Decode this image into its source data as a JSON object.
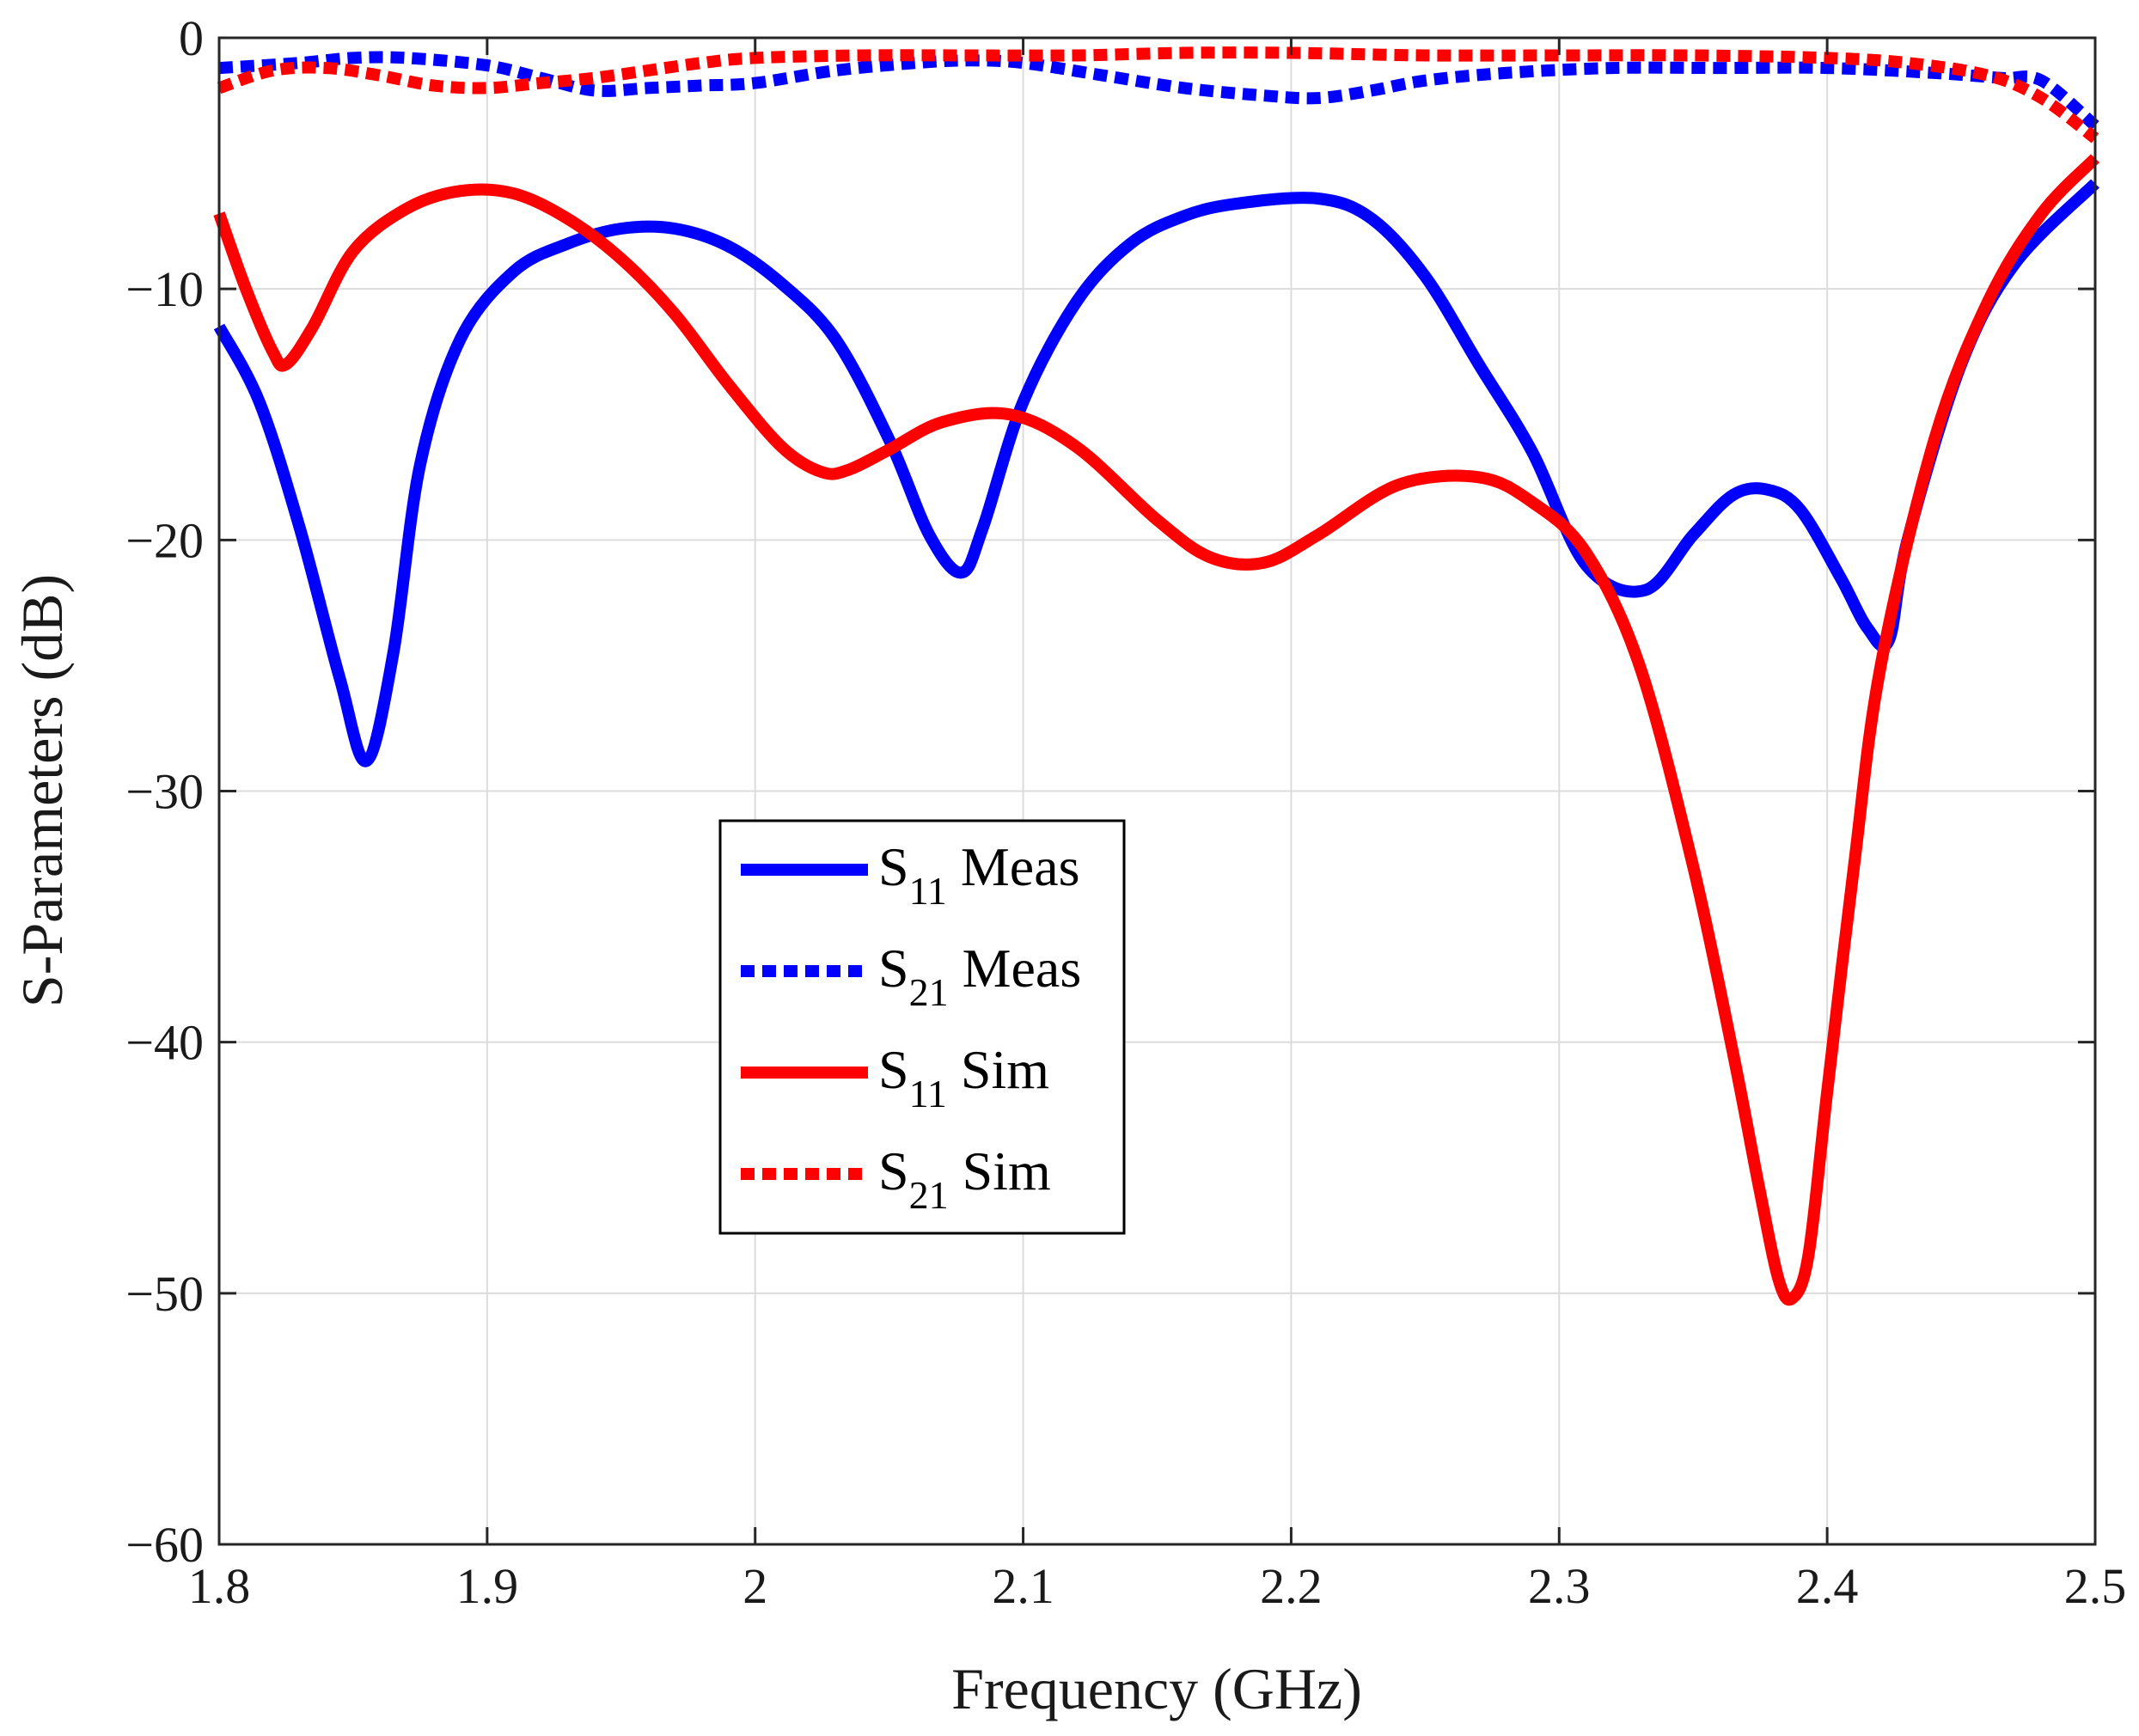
{
  "chart_data": {
    "type": "line",
    "title": "",
    "xlabel": "Frequency (GHz)",
    "ylabel": "S-Parameters (dB)",
    "xlim": [
      1.8,
      2.5
    ],
    "ylim": [
      -60,
      0
    ],
    "xticks": [
      1.8,
      1.9,
      2.0,
      2.1,
      2.2,
      2.3,
      2.4,
      2.5
    ],
    "xtick_labels": [
      "1.8",
      "1.9",
      "2",
      "2.1",
      "2.2",
      "2.3",
      "2.4",
      "2.5"
    ],
    "yticks": [
      0,
      -10,
      -20,
      -30,
      -40,
      -50,
      -60
    ],
    "ytick_labels": [
      "0",
      "−10",
      "−20",
      "−30",
      "−40",
      "−50",
      "−60"
    ],
    "grid": true,
    "legend_position": "center-left",
    "series": [
      {
        "name": "S11 Meas",
        "label_main": "S",
        "label_sub": "11",
        "label_rest": "Meas",
        "color": "#0000FF",
        "style": "solid",
        "x": [
          1.8,
          1.815,
          1.83,
          1.845,
          1.855,
          1.865,
          1.875,
          1.89,
          1.91,
          1.93,
          1.95,
          1.97,
          1.99,
          2.01,
          2.03,
          2.05,
          2.065,
          2.077,
          2.085,
          2.1,
          2.12,
          2.14,
          2.16,
          2.18,
          2.21,
          2.23,
          2.25,
          2.27,
          2.29,
          2.31,
          2.332,
          2.35,
          2.365,
          2.378,
          2.39,
          2.405,
          2.415,
          2.423,
          2.43,
          2.45,
          2.47,
          2.5
        ],
        "values": [
          -11.5,
          -14.5,
          -19.5,
          -25.5,
          -28.8,
          -24.5,
          -17.0,
          -12.0,
          -9.3,
          -8.2,
          -7.6,
          -7.6,
          -8.3,
          -9.8,
          -12.0,
          -16.0,
          -19.8,
          -21.3,
          -19.5,
          -14.5,
          -10.5,
          -8.2,
          -7.1,
          -6.6,
          -6.4,
          -7.2,
          -9.5,
          -13.0,
          -16.5,
          -21.0,
          -22.0,
          -19.8,
          -18.2,
          -18.0,
          -18.8,
          -21.5,
          -23.5,
          -24.0,
          -20.0,
          -13.0,
          -9.0,
          -5.8
        ]
      },
      {
        "name": "S21 Meas",
        "label_main": "S",
        "label_sub": "21",
        "label_rest": "Meas",
        "color": "#0000FF",
        "style": "dotted",
        "x": [
          1.8,
          1.83,
          1.85,
          1.87,
          1.9,
          1.92,
          1.94,
          1.96,
          1.98,
          2.0,
          2.03,
          2.06,
          2.08,
          2.1,
          2.13,
          2.16,
          2.19,
          2.21,
          2.23,
          2.25,
          2.28,
          2.32,
          2.36,
          2.4,
          2.44,
          2.465,
          2.48,
          2.5
        ],
        "values": [
          -1.2,
          -1.0,
          -0.8,
          -0.8,
          -1.1,
          -1.6,
          -2.1,
          -2.0,
          -1.9,
          -1.8,
          -1.3,
          -1.0,
          -0.9,
          -1.0,
          -1.5,
          -2.0,
          -2.3,
          -2.4,
          -2.1,
          -1.7,
          -1.4,
          -1.2,
          -1.2,
          -1.2,
          -1.4,
          -1.6,
          -1.7,
          -3.5
        ]
      },
      {
        "name": "S11 Sim",
        "label_main": "S",
        "label_sub": "11",
        "label_rest": "Sim",
        "color": "#FF0000",
        "style": "solid",
        "x": [
          1.8,
          1.81,
          1.82,
          1.825,
          1.835,
          1.85,
          1.87,
          1.89,
          1.91,
          1.93,
          1.95,
          1.97,
          1.99,
          2.01,
          2.025,
          2.035,
          2.05,
          2.07,
          2.095,
          2.12,
          2.15,
          2.17,
          2.19,
          2.21,
          2.24,
          2.27,
          2.29,
          2.31,
          2.33,
          2.35,
          2.365,
          2.375,
          2.382,
          2.387,
          2.393,
          2.4,
          2.41,
          2.42,
          2.44,
          2.46,
          2.48,
          2.5
        ],
        "values": [
          -7.0,
          -10.0,
          -12.5,
          -13.0,
          -11.5,
          -8.5,
          -6.8,
          -6.1,
          -6.2,
          -7.2,
          -8.8,
          -11.0,
          -13.8,
          -16.3,
          -17.3,
          -17.2,
          -16.4,
          -15.3,
          -15.0,
          -16.3,
          -19.2,
          -20.7,
          -20.9,
          -19.8,
          -17.8,
          -17.5,
          -18.5,
          -20.5,
          -25.0,
          -33.0,
          -40.5,
          -46.0,
          -49.5,
          -50.2,
          -48.5,
          -42.0,
          -33.0,
          -25.0,
          -16.0,
          -10.5,
          -7.0,
          -4.8
        ]
      },
      {
        "name": "S21 Sim",
        "label_main": "S",
        "label_sub": "21",
        "label_rest": "Sim",
        "color": "#FF0000",
        "style": "dotted",
        "x": [
          1.8,
          1.82,
          1.84,
          1.86,
          1.88,
          1.9,
          1.92,
          1.94,
          1.96,
          1.98,
          2.0,
          2.04,
          2.08,
          2.12,
          2.16,
          2.2,
          2.25,
          2.3,
          2.35,
          2.4,
          2.43,
          2.46,
          2.48,
          2.5
        ],
        "values": [
          -2.0,
          -1.3,
          -1.2,
          -1.5,
          -1.9,
          -2.0,
          -1.8,
          -1.6,
          -1.3,
          -1.0,
          -0.8,
          -0.7,
          -0.7,
          -0.7,
          -0.6,
          -0.6,
          -0.7,
          -0.7,
          -0.7,
          -0.8,
          -1.0,
          -1.5,
          -2.4,
          -4.0
        ]
      }
    ]
  }
}
